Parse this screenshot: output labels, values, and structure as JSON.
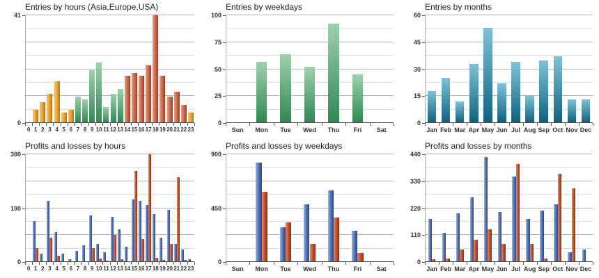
{
  "palette": {
    "orange": {
      "dir": "h",
      "stops": [
        "#f5c463",
        "#eca23b",
        "#b5740f"
      ]
    },
    "salmon": {
      "dir": "h",
      "stops": [
        "#e59d80",
        "#c96a4d",
        "#a63d22"
      ]
    },
    "green": {
      "dir": "v",
      "stops": [
        "#9ed1ae",
        "#2e8953"
      ]
    },
    "teal": {
      "dir": "v",
      "stops": [
        "#7fc2d8",
        "#0f627f"
      ]
    },
    "blue": {
      "dir": "h",
      "stops": [
        "#9db3e0",
        "#5071b5",
        "#2c4788"
      ]
    },
    "red": {
      "dir": "h",
      "stops": [
        "#e28a68",
        "#c4512f",
        "#98290f"
      ]
    }
  },
  "chart_data": [
    {
      "type": "bar",
      "title": "Entries by hours (Asia,Europe,USA)",
      "xlabel": "",
      "ylabel": "",
      "ylim": [
        0,
        41
      ],
      "yticks": [
        41,
        0
      ],
      "grid": "8 intervals, alternating major/minor",
      "legend": "none",
      "x_font": 8,
      "bar_frac": 0.78,
      "categories": [
        "0",
        "1",
        "2",
        "3",
        "4",
        "5",
        "6",
        "7",
        "8",
        "9",
        "10",
        "11",
        "12",
        "13",
        "14",
        "15",
        "16",
        "17",
        "18",
        "19",
        "20",
        "21",
        "22",
        "23"
      ],
      "series": [
        {
          "name": "entries",
          "color": "salmon",
          "values": [
            0,
            5,
            8,
            11,
            16,
            4,
            5,
            10,
            9,
            20,
            23,
            6,
            11,
            13,
            18,
            19,
            18,
            22,
            41,
            18,
            10,
            12,
            7,
            4
          ]
        }
      ],
      "bar_colors": [
        "orange",
        "orange",
        "orange",
        "orange",
        "orange",
        "orange",
        "orange",
        "green",
        "green",
        "green",
        "green",
        "green",
        "green",
        "green",
        "salmon",
        "salmon",
        "salmon",
        "salmon",
        "salmon",
        "salmon",
        "salmon",
        "salmon",
        "salmon",
        "orange"
      ]
    },
    {
      "type": "bar",
      "title": "Entries by weekdays",
      "xlabel": "",
      "ylabel": "",
      "ylim": [
        0,
        100
      ],
      "yticks": [
        100,
        75,
        50,
        25,
        0
      ],
      "grid": "8 intervals, alternating major/minor",
      "legend": "none",
      "x_font": 9,
      "bar_frac": 0.45,
      "categories": [
        "Sun",
        "Mon",
        "Tue",
        "Wed",
        "Thu",
        "Fri",
        "Sat"
      ],
      "series": [
        {
          "name": "entries",
          "color": "green",
          "values": [
            0,
            57,
            64,
            52,
            92,
            45,
            0
          ]
        }
      ]
    },
    {
      "type": "bar",
      "title": "Entries by months",
      "xlabel": "",
      "ylabel": "",
      "ylim": [
        0,
        60
      ],
      "yticks": [
        60,
        45,
        30,
        15,
        0
      ],
      "grid": "8 intervals, alternating major/minor",
      "legend": "none",
      "x_font": 9,
      "bar_frac": 0.62,
      "categories": [
        "Jan",
        "Feb",
        "Mar",
        "Apr",
        "May",
        "Jun",
        "Jul",
        "Aug",
        "Sep",
        "Oct",
        "Nov",
        "Dec"
      ],
      "series": [
        {
          "name": "entries",
          "color": "teal",
          "values": [
            18,
            25,
            12,
            33,
            53,
            22,
            34,
            15,
            35,
            37,
            13,
            13
          ]
        }
      ]
    },
    {
      "type": "bar",
      "title": "Profits and losses by hours",
      "xlabel": "",
      "ylabel": "",
      "ylim": [
        0,
        380
      ],
      "yticks": [
        380,
        190,
        0
      ],
      "grid": "8 intervals, alternating major/minor",
      "legend": "none",
      "x_font": 8,
      "bar_frac": 0.4,
      "categories": [
        "0",
        "1",
        "2",
        "3",
        "4",
        "5",
        "6",
        "7",
        "8",
        "9",
        "10",
        "11",
        "12",
        "13",
        "14",
        "15",
        "16",
        "17",
        "18",
        "19",
        "20",
        "21",
        "22",
        "23"
      ],
      "series": [
        {
          "name": "profit",
          "color": "blue",
          "values": [
            0,
            145,
            30,
            215,
            105,
            30,
            10,
            40,
            60,
            165,
            65,
            35,
            160,
            115,
            55,
            220,
            215,
            200,
            170,
            85,
            185,
            65,
            45,
            10
          ]
        },
        {
          "name": "loss",
          "color": "red",
          "values": [
            0,
            50,
            0,
            87,
            23,
            3,
            0,
            0,
            3,
            50,
            12,
            5,
            95,
            10,
            0,
            320,
            80,
            380,
            15,
            8,
            65,
            300,
            7,
            0
          ]
        }
      ]
    },
    {
      "type": "bar",
      "title": "Profits and losses by weekdays",
      "xlabel": "",
      "ylabel": "",
      "ylim": [
        0,
        900
      ],
      "yticks": [
        900,
        450,
        0
      ],
      "grid": "8 intervals, alternating major/minor",
      "legend": "none",
      "x_font": 9,
      "bar_frac": 0.24,
      "categories": [
        "Sun",
        "Mon",
        "Tue",
        "Wed",
        "Thu",
        "Fri",
        "Sat"
      ],
      "series": [
        {
          "name": "profit",
          "color": "blue",
          "values": [
            0,
            830,
            290,
            480,
            600,
            260,
            0
          ]
        },
        {
          "name": "loss",
          "color": "red",
          "values": [
            0,
            585,
            330,
            150,
            370,
            75,
            0
          ]
        }
      ]
    },
    {
      "type": "bar",
      "title": "Profits and losses by months",
      "xlabel": "",
      "ylabel": "",
      "ylim": [
        0,
        440
      ],
      "yticks": [
        440,
        330,
        220,
        110,
        0
      ],
      "grid": "8 intervals, alternating major/minor",
      "legend": "none",
      "x_font": 9,
      "bar_frac": 0.27,
      "categories": [
        "Jan",
        "Feb",
        "Mar",
        "Apr",
        "May",
        "Jun",
        "Jul",
        "Aug",
        "Sep",
        "Oct",
        "Nov",
        "Dec"
      ],
      "series": [
        {
          "name": "profit",
          "color": "blue",
          "values": [
            175,
            120,
            198,
            265,
            430,
            205,
            350,
            175,
            210,
            235,
            40,
            50
          ]
        },
        {
          "name": "loss",
          "color": "red",
          "values": [
            10,
            15,
            52,
            90,
            133,
            73,
            400,
            75,
            15,
            360,
            300,
            0
          ]
        }
      ]
    }
  ]
}
